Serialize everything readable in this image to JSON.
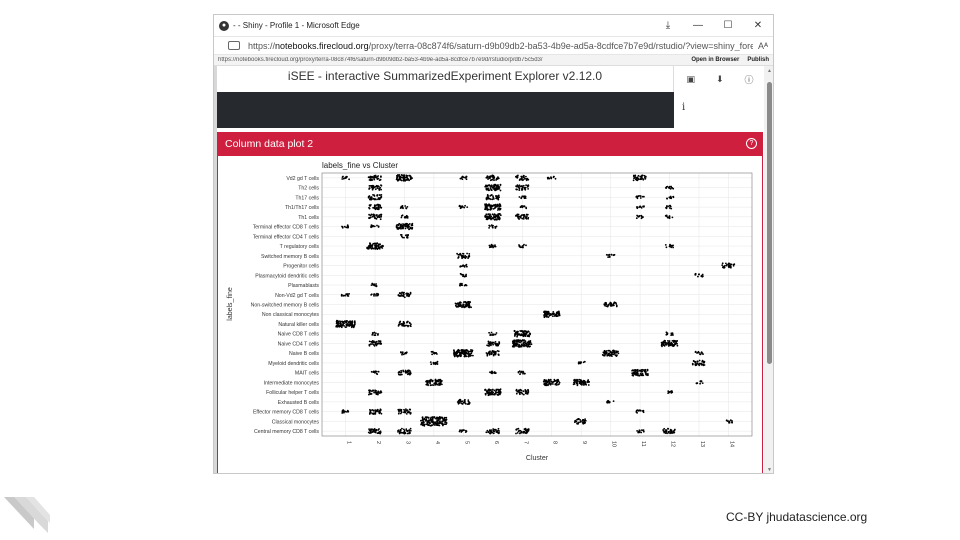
{
  "window": {
    "title": "- - Shiny - Profile 1 - Microsoft Edge",
    "controls": {
      "minimize": "—",
      "maximize": "☐",
      "close": "✕"
    }
  },
  "address": {
    "prefix": "https://",
    "domain": "notebooks.firecloud.org",
    "path": "/proxy/terra-08c874f6/saturn-d9b09db2-ba53-4b9e-ad5a-8cdfce7b7e9d/rstudio/?view=shiny_fore...",
    "reader_label": "Aᴬ"
  },
  "infobar": {
    "url": "https://notebooks.firecloud.org/proxy/terra-08c874f6/saturn-d9b09db2-ba53-4b9e-ad5a-8cdfce7b7e9d/rstudio/p/db75c5d3/",
    "open_in_browser": "Open in Browser",
    "publish": "Publish"
  },
  "app": {
    "title": "iSEE - interactive SummarizedExperiment Explorer v2.12.0",
    "info_label": "i"
  },
  "panel": {
    "title": "Column data plot 2",
    "help_label": "?"
  },
  "chart_data": {
    "type": "scatter",
    "title": "labels_fine vs Cluster",
    "xlabel": "Cluster",
    "ylabel": "labels_fine",
    "x_categories": [
      "1",
      "2",
      "3",
      "4",
      "5",
      "6",
      "7",
      "8",
      "9",
      "10",
      "11",
      "12",
      "13",
      "14"
    ],
    "y_categories": [
      "Central memory CD8 T cells",
      "Classical monocytes",
      "Effector memory CD8 T cells",
      "Exhausted B cells",
      "Follicular helper T cells",
      "Intermediate monocytes",
      "MAIT cells",
      "Myeloid dendritic cells",
      "Naive B cells",
      "Naive CD4 T cells",
      "Naive CD8 T cells",
      "Natural killer cells",
      "Non classical monocytes",
      "Non-switched memory B cells",
      "Non-Vd2 gd T cells",
      "Plasmablasts",
      "Plasmacytoid dendritic cells",
      "Progenitor cells",
      "Switched memory B cells",
      "T regulatory cells",
      "Terminal effector CD4 T cells",
      "Terminal effector CD8 T cells",
      "Th1 cells",
      "Th1/Th17 cells",
      "Th17 cells",
      "Th2 cells",
      "Vd2 gd T cells"
    ],
    "points": [
      {
        "label": "Vd2 gd T cells",
        "clusters": [
          1,
          2,
          3,
          5,
          6,
          7,
          8,
          11
        ],
        "density": [
          1,
          2,
          3,
          1,
          2,
          2,
          1,
          2
        ]
      },
      {
        "label": "Th2 cells",
        "clusters": [
          2,
          6,
          7,
          12
        ],
        "density": [
          2,
          3,
          2,
          1
        ]
      },
      {
        "label": "Th17 cells",
        "clusters": [
          2,
          6,
          7,
          11,
          12
        ],
        "density": [
          2,
          2,
          1,
          1,
          1
        ]
      },
      {
        "label": "Th1/Th17 cells",
        "clusters": [
          2,
          3,
          5,
          6,
          7,
          11,
          12
        ],
        "density": [
          2,
          1,
          1,
          3,
          1,
          1,
          1
        ]
      },
      {
        "label": "Th1 cells",
        "clusters": [
          2,
          3,
          6,
          7,
          11,
          12
        ],
        "density": [
          2,
          1,
          3,
          2,
          1,
          1
        ]
      },
      {
        "label": "Terminal effector CD8 T cells",
        "clusters": [
          1,
          2,
          3,
          6
        ],
        "density": [
          1,
          1,
          3,
          1
        ]
      },
      {
        "label": "Terminal effector CD4 T cells",
        "clusters": [
          3
        ],
        "density": [
          1
        ]
      },
      {
        "label": "T regulatory cells",
        "clusters": [
          2,
          6,
          7,
          12
        ],
        "density": [
          3,
          1,
          1,
          1
        ]
      },
      {
        "label": "Switched memory B cells",
        "clusters": [
          5,
          10
        ],
        "density": [
          2,
          1
        ]
      },
      {
        "label": "Progenitor cells",
        "clusters": [
          5,
          14
        ],
        "density": [
          1,
          2
        ]
      },
      {
        "label": "Plasmacytoid dendritic cells",
        "clusters": [
          5,
          13
        ],
        "density": [
          1,
          1
        ]
      },
      {
        "label": "Plasmablasts",
        "clusters": [
          2,
          5
        ],
        "density": [
          1,
          1
        ]
      },
      {
        "label": "Non-Vd2 gd T cells",
        "clusters": [
          1,
          2,
          3
        ],
        "density": [
          1,
          1,
          2
        ]
      },
      {
        "label": "Non-switched memory B cells",
        "clusters": [
          5,
          10
        ],
        "density": [
          3,
          2
        ]
      },
      {
        "label": "Non classical monocytes",
        "clusters": [
          8
        ],
        "density": [
          3
        ]
      },
      {
        "label": "Natural killer cells",
        "clusters": [
          1,
          3
        ],
        "density": [
          4,
          2
        ]
      },
      {
        "label": "Naive CD8 T cells",
        "clusters": [
          2,
          6,
          7,
          12
        ],
        "density": [
          1,
          1,
          3,
          1
        ]
      },
      {
        "label": "Naive CD4 T cells",
        "clusters": [
          2,
          6,
          7,
          12
        ],
        "density": [
          2,
          2,
          4,
          3
        ]
      },
      {
        "label": "Naive B cells",
        "clusters": [
          3,
          4,
          5,
          6,
          10,
          13
        ],
        "density": [
          1,
          1,
          4,
          2,
          3,
          1
        ]
      },
      {
        "label": "Myeloid dendritic cells",
        "clusters": [
          4,
          9,
          13
        ],
        "density": [
          1,
          1,
          2
        ]
      },
      {
        "label": "MAIT cells",
        "clusters": [
          2,
          3,
          6,
          7,
          11
        ],
        "density": [
          1,
          2,
          1,
          1,
          3
        ]
      },
      {
        "label": "Intermediate monocytes",
        "clusters": [
          4,
          8,
          9,
          13
        ],
        "density": [
          3,
          3,
          3,
          1
        ]
      },
      {
        "label": "Follicular helper T cells",
        "clusters": [
          2,
          6,
          7,
          12
        ],
        "density": [
          2,
          3,
          2,
          1
        ]
      },
      {
        "label": "Exhausted B cells",
        "clusters": [
          5,
          10
        ],
        "density": [
          2,
          1
        ]
      },
      {
        "label": "Effector memory CD8 T cells",
        "clusters": [
          1,
          2,
          3,
          11
        ],
        "density": [
          1,
          2,
          2,
          1
        ]
      },
      {
        "label": "Classical monocytes",
        "clusters": [
          4,
          9,
          14
        ],
        "density": [
          5,
          2,
          1
        ]
      },
      {
        "label": "Central memory CD8 T cells",
        "clusters": [
          2,
          3,
          5,
          6,
          7,
          11,
          12
        ],
        "density": [
          2,
          2,
          1,
          2,
          2,
          1,
          2
        ]
      }
    ],
    "grid": true,
    "legend": "none"
  },
  "footer": {
    "license": "CC-BY",
    "site": "jhudatascience.org"
  }
}
